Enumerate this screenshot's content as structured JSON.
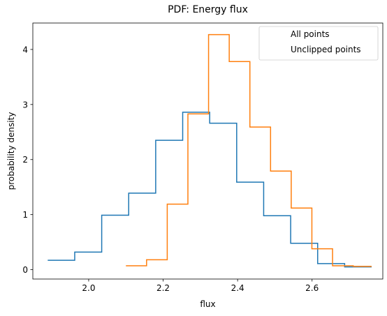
{
  "chart_data": {
    "type": "histogram",
    "title": "PDF: Energy flux",
    "xlabel": "flux",
    "ylabel": "probability density",
    "xlim": [
      1.85,
      2.79
    ],
    "ylim": [
      -0.17,
      4.48
    ],
    "xticks": [
      2.0,
      2.2,
      2.4,
      2.6
    ],
    "xtick_labels": [
      "2.0",
      "2.2",
      "2.4",
      "2.6"
    ],
    "yticks": [
      0,
      1,
      2,
      3,
      4
    ],
    "ytick_labels": [
      "0",
      "1",
      "2",
      "3",
      "4"
    ],
    "grid": false,
    "legend_placement": "top-right",
    "series": [
      {
        "name": "All points",
        "color": "#1f77b4",
        "bin_edges": [
          1.89,
          1.9625,
          2.035,
          2.1075,
          2.18,
          2.2525,
          2.325,
          2.3975,
          2.47,
          2.5425,
          2.615,
          2.6875,
          2.76
        ],
        "values": [
          0.17,
          0.32,
          0.99,
          1.39,
          2.35,
          2.86,
          2.66,
          1.59,
          0.98,
          0.48,
          0.11,
          0.05
        ]
      },
      {
        "name": "Unclipped points",
        "color": "#ff7f0e",
        "bin_edges": [
          2.1,
          2.1555,
          2.211,
          2.2665,
          2.322,
          2.3775,
          2.433,
          2.4885,
          2.544,
          2.5995,
          2.655,
          2.7105,
          2.76
        ],
        "values": [
          0.07,
          0.18,
          1.19,
          2.83,
          4.27,
          3.78,
          2.59,
          1.79,
          1.12,
          0.38,
          0.07,
          0.06
        ]
      }
    ]
  }
}
